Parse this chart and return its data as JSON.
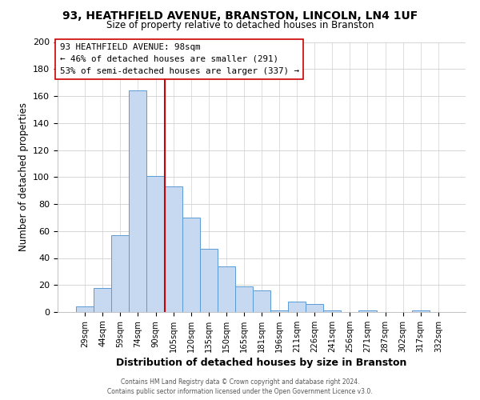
{
  "title": "93, HEATHFIELD AVENUE, BRANSTON, LINCOLN, LN4 1UF",
  "subtitle": "Size of property relative to detached houses in Branston",
  "xlabel": "Distribution of detached houses by size in Branston",
  "ylabel": "Number of detached properties",
  "bar_labels": [
    "29sqm",
    "44sqm",
    "59sqm",
    "74sqm",
    "90sqm",
    "105sqm",
    "120sqm",
    "135sqm",
    "150sqm",
    "165sqm",
    "181sqm",
    "196sqm",
    "211sqm",
    "226sqm",
    "241sqm",
    "256sqm",
    "271sqm",
    "287sqm",
    "302sqm",
    "317sqm",
    "332sqm"
  ],
  "bar_values": [
    4,
    18,
    57,
    164,
    101,
    93,
    70,
    47,
    34,
    19,
    16,
    1,
    8,
    6,
    1,
    0,
    1,
    0,
    0,
    1,
    0
  ],
  "bar_color": "#c6d9f0",
  "bar_edge_color": "#5b9bd5",
  "vline_color": "#cc0000",
  "ylim": [
    0,
    200
  ],
  "yticks": [
    0,
    20,
    40,
    60,
    80,
    100,
    120,
    140,
    160,
    180,
    200
  ],
  "annotation_title": "93 HEATHFIELD AVENUE: 98sqm",
  "annotation_line1": "← 46% of detached houses are smaller (291)",
  "annotation_line2": "53% of semi-detached houses are larger (337) →",
  "footer1": "Contains HM Land Registry data © Crown copyright and database right 2024.",
  "footer2": "Contains public sector information licensed under the Open Government Licence v3.0.",
  "background_color": "#ffffff",
  "grid_color": "#d0d0d0"
}
